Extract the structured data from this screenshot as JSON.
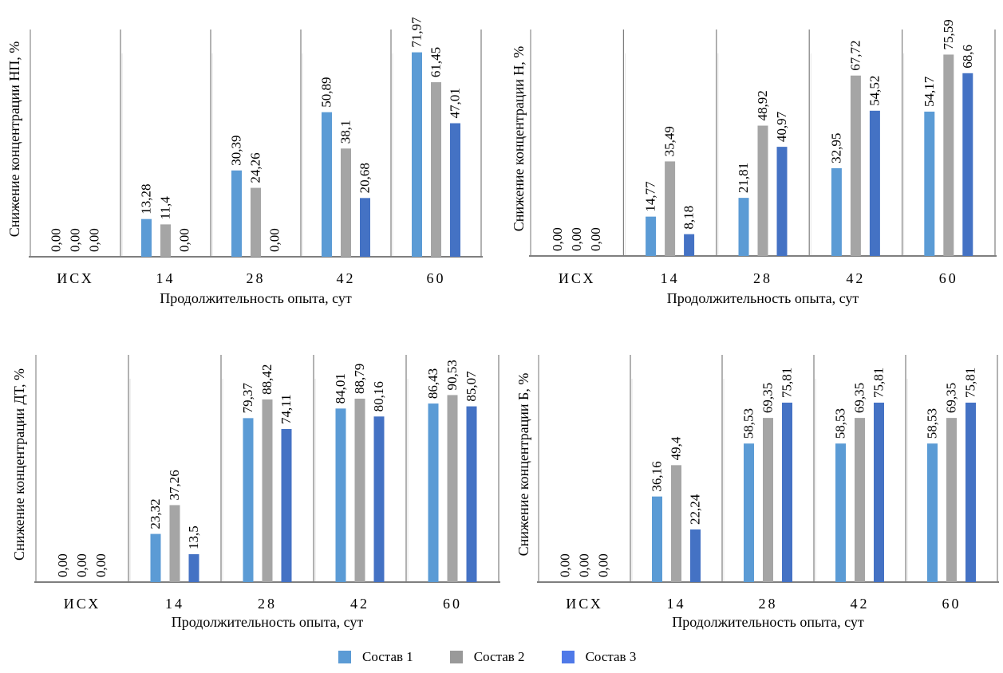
{
  "legend": [
    {
      "name": "Состав 1",
      "color": "#5B9BD5"
    },
    {
      "name": "Состав 2",
      "color": "#A5A5A5"
    },
    {
      "name": "Состав 3",
      "color": "#4472C4"
    }
  ],
  "legend_swatch_colors": [
    "#5B9BD5",
    "#999999",
    "#4F79E8"
  ],
  "chart_data": [
    {
      "type": "bar",
      "title": "",
      "ylabel": "Снижение концентрации НП, %",
      "xlabel": "Продолжительность опыта, сут",
      "categories": [
        "ИСХ",
        "14",
        "28",
        "42",
        "60"
      ],
      "ylim": [
        0,
        80
      ],
      "grid": false,
      "series": [
        {
          "name": "Состав 1",
          "values": [
            0.0,
            13.28,
            30.39,
            50.89,
            71.97
          ],
          "labels": [
            "0,00",
            "13,28",
            "30,39",
            "50,89",
            "71,97"
          ]
        },
        {
          "name": "Состав 2",
          "values": [
            0.0,
            11.4,
            24.26,
            38.1,
            61.45
          ],
          "labels": [
            "0,00",
            "11,4",
            "24,26",
            "38,1",
            "61,45"
          ]
        },
        {
          "name": "Состав 3",
          "values": [
            0.0,
            0.0,
            0.0,
            20.68,
            47.01
          ],
          "labels": [
            "0,00",
            "0,00",
            "0,00",
            "20,68",
            "47,01"
          ]
        }
      ]
    },
    {
      "type": "bar",
      "title": "",
      "ylabel": "Снижение концентрации Н, %",
      "xlabel": "Продолжительность опыта, сут",
      "categories": [
        "ИСХ",
        "14",
        "28",
        "42",
        "60"
      ],
      "ylim": [
        0,
        85
      ],
      "grid": false,
      "series": [
        {
          "name": "Состав 1",
          "values": [
            0.0,
            14.77,
            21.81,
            32.95,
            54.17
          ],
          "labels": [
            "0,00",
            "14,77",
            "21,81",
            "32,95",
            "54,17"
          ]
        },
        {
          "name": "Состав 2",
          "values": [
            0.0,
            35.49,
            48.92,
            67.72,
            75.59
          ],
          "labels": [
            "0,00",
            "35,49",
            "48,92",
            "67,72",
            "75,59"
          ]
        },
        {
          "name": "Состав 3",
          "values": [
            0.0,
            8.18,
            40.97,
            54.52,
            68.6
          ],
          "labels": [
            "0,00",
            "8,18",
            "40,97",
            "54,52",
            "68,6"
          ]
        }
      ]
    },
    {
      "type": "bar",
      "title": "",
      "ylabel": "Снижение концентрации ДТ, %",
      "xlabel": "Продолжительность опыта, сут",
      "categories": [
        "ИСХ",
        "14",
        "28",
        "42",
        "60"
      ],
      "ylim": [
        0,
        110
      ],
      "grid": false,
      "series": [
        {
          "name": "Состав 1",
          "values": [
            0.0,
            23.32,
            79.37,
            84.01,
            86.43
          ],
          "labels": [
            "0,00",
            "23,32",
            "79,37",
            "84,01",
            "86,43"
          ]
        },
        {
          "name": "Состав 2",
          "values": [
            0.0,
            37.26,
            88.42,
            88.79,
            90.53
          ],
          "labels": [
            "0,00",
            "37,26",
            "88,42",
            "88,79",
            "90,53"
          ]
        },
        {
          "name": "Состав 3",
          "values": [
            0.0,
            13.5,
            74.11,
            80.16,
            85.07
          ],
          "labels": [
            "0,00",
            "13,5",
            "74,11",
            "80,16",
            "85,07"
          ]
        }
      ]
    },
    {
      "type": "bar",
      "title": "",
      "ylabel": "Снижение концентрации Б, %",
      "xlabel": "Продолжительность опыта, сут",
      "categories": [
        "ИСХ",
        "14",
        "28",
        "42",
        "60"
      ],
      "ylim": [
        0,
        96
      ],
      "grid": false,
      "series": [
        {
          "name": "Состав 1",
          "values": [
            0.0,
            36.16,
            58.53,
            58.53,
            58.53
          ],
          "labels": [
            "0,00",
            "36,16",
            "58,53",
            "58,53",
            "58,53"
          ]
        },
        {
          "name": "Состав 2",
          "values": [
            0.0,
            49.4,
            69.35,
            69.35,
            69.35
          ],
          "labels": [
            "0,00",
            "49,4",
            "69,35",
            "69,35",
            "69,35"
          ]
        },
        {
          "name": "Состав 3",
          "values": [
            0.0,
            22.24,
            75.81,
            75.81,
            75.81
          ],
          "labels": [
            "0,00",
            "22,24",
            "75,81",
            "75,81",
            "75,81"
          ]
        }
      ]
    }
  ]
}
